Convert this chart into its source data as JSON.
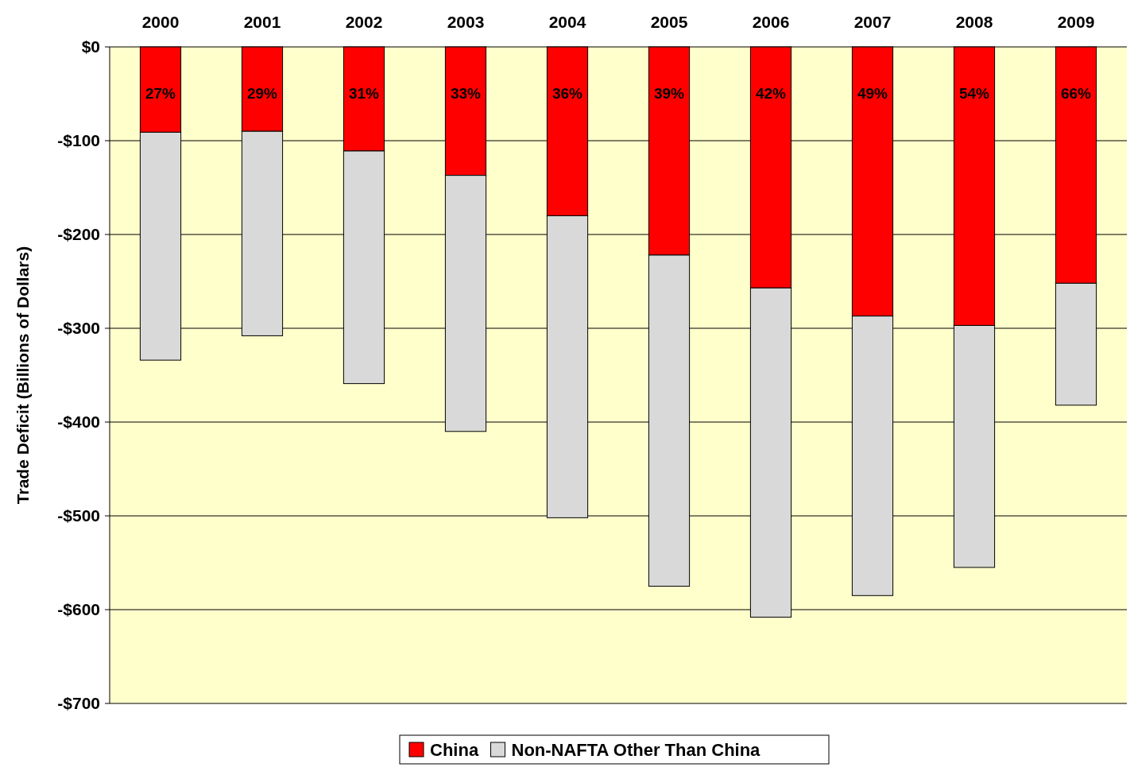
{
  "chart_data": {
    "type": "bar",
    "stacked": true,
    "ylabel": "Trade Deficit (Billions of Dollars)",
    "categories": [
      "2000",
      "2001",
      "2002",
      "2003",
      "2004",
      "2005",
      "2006",
      "2007",
      "2008",
      "2009"
    ],
    "series": [
      {
        "name": "China",
        "color": "#ff0000",
        "values": [
          -91,
          -90,
          -111,
          -137,
          -180,
          -222,
          -257,
          -287,
          -297,
          -252
        ]
      },
      {
        "name": "Non-NAFTA Other Than China",
        "color": "#d9d9d9",
        "values": [
          -243,
          -218,
          -248,
          -273,
          -322,
          -353,
          -351,
          -298,
          -258,
          -130
        ]
      }
    ],
    "ylim": [
      -700,
      0
    ],
    "yticks": [
      {
        "value": 0,
        "label": "$0"
      },
      {
        "value": -100,
        "label": "-$100"
      },
      {
        "value": -200,
        "label": "-$200"
      },
      {
        "value": -300,
        "label": "-$300"
      },
      {
        "value": -400,
        "label": "-$400"
      },
      {
        "value": -500,
        "label": "-$500"
      },
      {
        "value": -600,
        "label": "-$600"
      },
      {
        "value": -700,
        "label": "-$700"
      }
    ],
    "annotations": [
      "27%",
      "29%",
      "31%",
      "33%",
      "36%",
      "39%",
      "42%",
      "49%",
      "54%",
      "66%"
    ],
    "grid": "y",
    "legend": "bottom"
  }
}
